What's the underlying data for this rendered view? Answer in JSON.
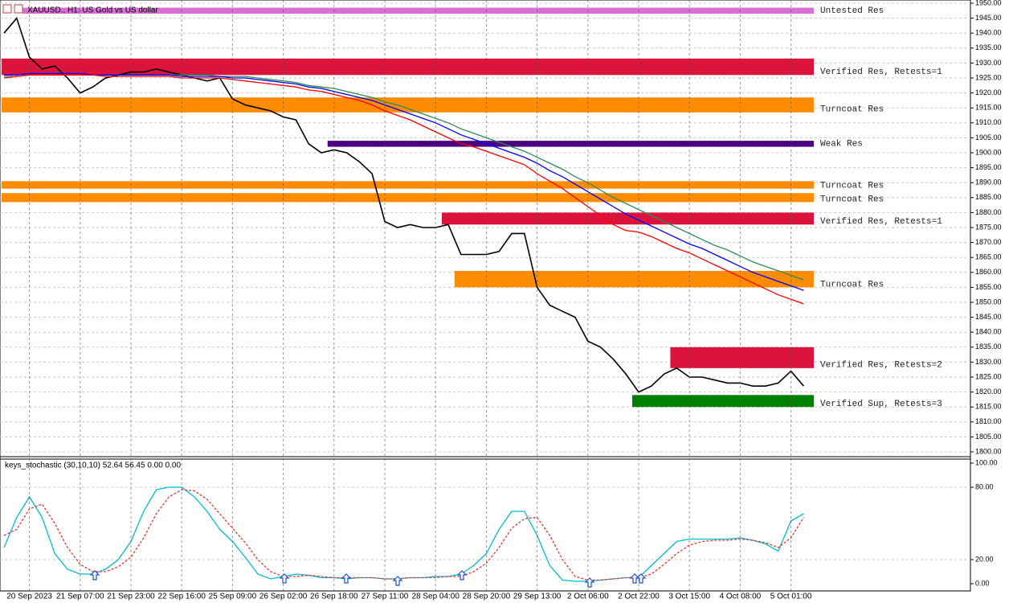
{
  "chart_data": [
    {
      "type": "line",
      "title": "XAUUSD., H1: US Gold vs US dollar",
      "categories": [
        null,
        null,
        "20 Sep 2023",
        null,
        null,
        null,
        "21 Sep 07:00",
        null,
        null,
        null,
        "21 Sep 23:00",
        null,
        null,
        null,
        "22 Sep 16:00",
        null,
        null,
        null,
        "25 Sep 09:00",
        null,
        null,
        null,
        "26 Sep 02:00",
        null,
        null,
        null,
        "26 Sep 18:00",
        null,
        null,
        null,
        "27 Sep 11:00",
        null,
        null,
        null,
        "28 Sep 04:00",
        null,
        null,
        null,
        "28 Sep 20:00",
        null,
        null,
        null,
        "29 Sep 13:00",
        null,
        null,
        null,
        "2 Oct 06:00",
        null,
        null,
        null,
        "2 Oct 22:00",
        null,
        null,
        null,
        "3 Oct 15:00",
        null,
        null,
        null,
        "4 Oct 08:00",
        null,
        null,
        null,
        "5 Oct 01:00",
        null
      ],
      "series": [
        {
          "color": "#000000",
          "values": [
            1940,
            1945,
            1932,
            1928,
            1929,
            1925,
            1920,
            1922,
            1925,
            1926,
            1927,
            1927,
            1928,
            1927,
            1926,
            1925,
            1924,
            1925,
            1918,
            1916,
            1915,
            1914,
            1912,
            1911,
            1903,
            1900,
            1901,
            1900,
            1897,
            1893,
            1877,
            1875,
            1876,
            1875,
            1875,
            1876,
            1866,
            1866,
            1866,
            1867,
            1873,
            1873,
            1855,
            1849,
            1847,
            1845,
            1837,
            1835,
            1831,
            1826,
            1820,
            1822,
            1826,
            1828,
            1825,
            1825,
            1824,
            1823,
            1823,
            1822,
            1822,
            1823,
            1827,
            1822
          ]
        },
        {
          "color": "#2e8b57",
          "values": [
            1925.5,
            1925.5,
            1926,
            1926,
            1926,
            1926,
            1926,
            1926,
            1926,
            1926,
            1926,
            1926,
            1926,
            1926,
            1926,
            1926,
            1926,
            1925.5,
            1925.5,
            1925.5,
            1925,
            1924.5,
            1924,
            1923.5,
            1922.5,
            1922,
            1921.5,
            1920.5,
            1919.5,
            1918.5,
            1917,
            1916,
            1914.5,
            1913,
            1911.5,
            1910,
            1908,
            1906.5,
            1905,
            1903.5,
            1902,
            1900.5,
            1898.5,
            1896.5,
            1894.5,
            1892,
            1890,
            1887.5,
            1885,
            1883,
            1881,
            1879,
            1877,
            1875,
            1873,
            1871,
            1869,
            1867.5,
            1865.5,
            1863.5,
            1862,
            1860.5,
            1859,
            1857.5
          ]
        },
        {
          "color": "#0000ff",
          "values": [
            1926,
            1926,
            1926.5,
            1926.5,
            1926.5,
            1926.5,
            1926.5,
            1926,
            1926,
            1926,
            1926,
            1926,
            1926,
            1926,
            1925.5,
            1925.5,
            1925.5,
            1925.5,
            1925,
            1925,
            1924.5,
            1924,
            1923.5,
            1923,
            1922,
            1921.5,
            1920.5,
            1919.5,
            1918.5,
            1917.5,
            1916,
            1914.5,
            1913,
            1911.5,
            1910,
            1908,
            1906,
            1904.5,
            1903,
            1901.5,
            1900,
            1898.5,
            1896.5,
            1894,
            1892,
            1889.5,
            1887,
            1884.5,
            1882,
            1879.5,
            1877.5,
            1875.5,
            1873.5,
            1871.5,
            1869.5,
            1868,
            1866,
            1864,
            1862,
            1860,
            1858.5,
            1857,
            1855.5,
            1854
          ]
        },
        {
          "color": "#ff0000",
          "values": [
            1925,
            1925.5,
            1926,
            1926,
            1926,
            1926,
            1926,
            1926,
            1925.5,
            1925.5,
            1925.5,
            1925.5,
            1925.5,
            1925.5,
            1925,
            1925,
            1925,
            1925,
            1924.5,
            1924,
            1923.5,
            1923,
            1922.5,
            1922,
            1921,
            1920.5,
            1919.5,
            1918.5,
            1917.5,
            1916,
            1914,
            1912.5,
            1911,
            1909,
            1907,
            1905,
            1903,
            1902,
            1900.5,
            1899,
            1897.5,
            1896,
            1893,
            1890.5,
            1888,
            1885,
            1882,
            1879,
            1876,
            1874,
            1873.5,
            1872,
            1870,
            1868,
            1866.5,
            1864.5,
            1862.5,
            1860.5,
            1858.5,
            1856.5,
            1854.5,
            1852.5,
            1851,
            1849.5
          ]
        }
      ],
      "zones": [
        {
          "label": "Untested Res",
          "low": 1946.5,
          "high": 1948.5,
          "color": "#da70d6",
          "start": 2
        },
        {
          "label": "Verified Res, Retests=1",
          "low": 1926,
          "high": 1931.5,
          "color": "#dc143c",
          "start": 0
        },
        {
          "label": "Turncoat Res",
          "low": 1913.5,
          "high": 1918.5,
          "color": "#ff8c00",
          "start": 0
        },
        {
          "label": "Weak Res",
          "low": 1902,
          "high": 1904,
          "color": "#4b0082",
          "start": 26
        },
        {
          "label": "Turncoat Res",
          "low": 1888,
          "high": 1890.5,
          "color": "#ff8c00",
          "start": 0
        },
        {
          "label": "Turncoat Res",
          "low": 1883.5,
          "high": 1886.5,
          "color": "#ff8c00",
          "start": 0
        },
        {
          "label": "Verified Res, Retests=1",
          "low": 1876,
          "high": 1880,
          "color": "#dc143c",
          "start": 35
        },
        {
          "label": "Turncoat Res",
          "low": 1855,
          "high": 1860.5,
          "color": "#ff8c00",
          "start": 36
        },
        {
          "label": "Verified Res, Retests=2",
          "low": 1828,
          "high": 1835,
          "color": "#dc143c",
          "start": 53
        },
        {
          "label": "Verified Sup, Retests=3",
          "low": 1815,
          "high": 1819,
          "color": "#008000",
          "start": 50
        }
      ],
      "ylim": [
        1800,
        1950
      ],
      "yticks": [
        {
          "value": 1800,
          "label": "1800.00"
        },
        {
          "value": 1805,
          "label": "1805.00"
        },
        {
          "value": 1810,
          "label": "1810.00"
        },
        {
          "value": 1815,
          "label": "1815.00"
        },
        {
          "value": 1820,
          "label": "1820.00"
        },
        {
          "value": 1825,
          "label": "1825.00"
        },
        {
          "value": 1830,
          "label": "1830.00"
        },
        {
          "value": 1835,
          "label": "1835.00"
        },
        {
          "value": 1840,
          "label": "1840.00"
        },
        {
          "value": 1845,
          "label": "1845.00"
        },
        {
          "value": 1850,
          "label": "1850.00"
        },
        {
          "value": 1855,
          "label": "1855.00"
        },
        {
          "value": 1860,
          "label": "1860.00"
        },
        {
          "value": 1865,
          "label": "1865.00"
        },
        {
          "value": 1870,
          "label": "1870.00"
        },
        {
          "value": 1875,
          "label": "1875.00"
        },
        {
          "value": 1880,
          "label": "1880.00"
        },
        {
          "value": 1885,
          "label": "1885.00"
        },
        {
          "value": 1890,
          "label": "1890.00"
        },
        {
          "value": 1895,
          "label": "1895.00"
        },
        {
          "value": 1900,
          "label": "1900.00"
        },
        {
          "value": 1905,
          "label": "1905.00"
        },
        {
          "value": 1910,
          "label": "1910.00"
        },
        {
          "value": 1915,
          "label": "1915.00"
        },
        {
          "value": 1920,
          "label": "1920.00"
        },
        {
          "value": 1925,
          "label": "1925.00"
        },
        {
          "value": 1930,
          "label": "1930.00"
        },
        {
          "value": 1935,
          "label": "1935.00"
        },
        {
          "value": 1940,
          "label": "1940.00"
        },
        {
          "value": 1945,
          "label": "1945.00"
        },
        {
          "value": 1950,
          "label": "1950.00"
        }
      ],
      "grid": true
    },
    {
      "type": "line",
      "title": "keys_stochastic (30,10,10) 52.64 56.45 0.00 0.00",
      "series": [
        {
          "color": "#00bcd4",
          "style": "solid",
          "values": [
            30,
            55,
            72,
            55,
            25,
            12,
            8,
            8,
            12,
            20,
            35,
            60,
            78,
            80,
            80,
            72,
            60,
            45,
            35,
            22,
            8,
            4,
            6,
            8,
            7,
            5,
            5,
            4,
            5,
            5,
            4,
            4,
            5,
            5,
            6,
            6,
            8,
            15,
            25,
            45,
            60,
            60,
            40,
            15,
            3,
            2,
            2,
            3,
            4,
            5,
            5,
            15,
            25,
            35,
            37,
            37,
            37,
            37,
            38,
            36,
            33,
            27,
            52,
            58
          ]
        },
        {
          "color": "#e53935",
          "style": "dashed",
          "values": [
            40,
            45,
            62,
            66,
            50,
            30,
            16,
            10,
            10,
            14,
            22,
            38,
            58,
            72,
            78,
            77,
            70,
            58,
            46,
            34,
            20,
            10,
            6,
            6,
            7,
            6,
            5,
            5,
            5,
            5,
            4,
            4,
            5,
            5,
            5,
            6,
            6,
            10,
            17,
            30,
            46,
            54,
            55,
            40,
            20,
            6,
            3,
            3,
            4,
            5,
            5,
            8,
            16,
            25,
            32,
            35,
            36,
            36,
            37,
            36,
            34,
            30,
            38,
            55
          ]
        }
      ],
      "ylim": [
        0,
        100
      ],
      "yticks": [
        {
          "value": 0,
          "label": "0.00"
        },
        {
          "value": 20,
          "label": "20.00"
        },
        {
          "value": 80,
          "label": "80.00"
        },
        {
          "value": 100,
          "label": "100.00"
        }
      ],
      "grid": true
    }
  ]
}
